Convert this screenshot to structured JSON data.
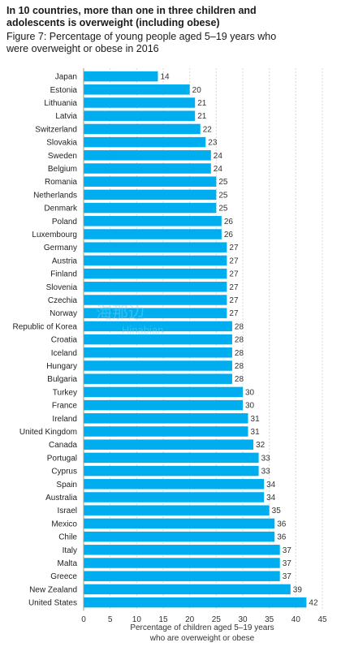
{
  "header": {
    "headline_line1": "In 10 countries, more than one in three children and",
    "headline_line2": "adolescents is overweight (including obese)",
    "figure_title_line1": "Figure 7: Percentage of young people aged 5–19 years who",
    "figure_title_line2": "were overweight or obese in 2016"
  },
  "watermark": {
    "cn": "海那边",
    "en": "Hinabian"
  },
  "colors": {
    "bar": "#00aeef",
    "grid": "#d9d9d9",
    "axis": "#999999",
    "text": "#222222"
  },
  "chart_data": {
    "type": "bar",
    "orientation": "horizontal",
    "categories": [
      "Japan",
      "Estonia",
      "Lithuania",
      "Latvia",
      "Switzerland",
      "Slovakia",
      "Sweden",
      "Belgium",
      "Romania",
      "Netherlands",
      "Denmark",
      "Poland",
      "Luxembourg",
      "Germany",
      "Austria",
      "Finland",
      "Slovenia",
      "Czechia",
      "Norway",
      "Republic of Korea",
      "Croatia",
      "Iceland",
      "Hungary",
      "Bulgaria",
      "Turkey",
      "France",
      "Ireland",
      "United Kingdom",
      "Canada",
      "Portugal",
      "Cyprus",
      "Spain",
      "Australia",
      "Israel",
      "Mexico",
      "Chile",
      "Italy",
      "Malta",
      "Greece",
      "New Zealand",
      "United States"
    ],
    "values": [
      14,
      20,
      21,
      21,
      22,
      23,
      24,
      24,
      25,
      25,
      25,
      26,
      26,
      27,
      27,
      27,
      27,
      27,
      27,
      28,
      28,
      28,
      28,
      28,
      30,
      30,
      31,
      31,
      32,
      33,
      33,
      34,
      34,
      35,
      36,
      36,
      37,
      37,
      37,
      39,
      42
    ],
    "xlim": [
      0,
      45
    ],
    "xticks": [
      0,
      5,
      10,
      15,
      20,
      25,
      30,
      35,
      40,
      45
    ],
    "xlabel_line1": "Percentage of children aged 5–19 years",
    "xlabel_line2": "who are overweight or obese",
    "grid": true
  }
}
